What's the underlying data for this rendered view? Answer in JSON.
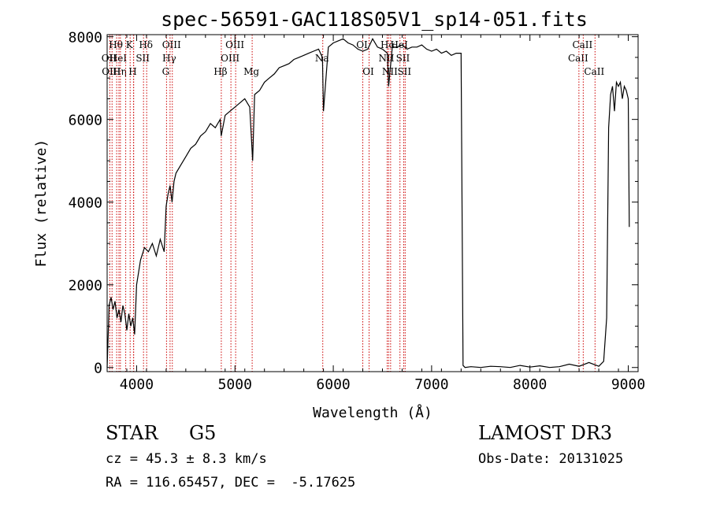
{
  "chart_data": {
    "type": "line",
    "title": "spec-56591-GAC118S05V1_sp14-051.fits",
    "xlabel": "Wavelength (Å)",
    "ylabel": "Flux (relative)",
    "xlim": [
      3700,
      9100
    ],
    "ylim": [
      -100,
      8050
    ],
    "xticks": [
      4000,
      5000,
      6000,
      7000,
      8000,
      9000
    ],
    "yticks": [
      0,
      2000,
      4000,
      6000,
      8000
    ],
    "grid": false,
    "series": [
      {
        "x": [
          3700,
          3720,
          3740,
          3760,
          3780,
          3800,
          3820,
          3840,
          3860,
          3880,
          3900,
          3920,
          3940,
          3960,
          3980,
          4000,
          4040,
          4080,
          4120,
          4160,
          4200,
          4240,
          4280,
          4300,
          4320,
          4340,
          4360,
          4380,
          4400,
          4450,
          4500,
          4550,
          4600,
          4650,
          4700,
          4750,
          4800,
          4850,
          4860,
          4900,
          4950,
          5000,
          5050,
          5100,
          5150,
          5180,
          5200,
          5250,
          5300,
          5350,
          5400,
          5450,
          5500,
          5550,
          5600,
          5650,
          5700,
          5750,
          5800,
          5850,
          5890,
          5900,
          5950,
          6000,
          6050,
          6100,
          6150,
          6200,
          6250,
          6300,
          6350,
          6400,
          6450,
          6500,
          6550,
          6563,
          6600,
          6650,
          6700,
          6750,
          6800,
          6850,
          6900,
          6950,
          7000,
          7050,
          7100,
          7150,
          7200,
          7250,
          7300,
          7320,
          7340,
          7400,
          7500,
          7600,
          7700,
          7800,
          7900,
          8000,
          8100,
          8200,
          8300,
          8400,
          8500,
          8600,
          8700,
          8750,
          8780,
          8800,
          8820,
          8840,
          8860,
          8880,
          8900,
          8920,
          8940,
          8960,
          8980,
          9000,
          9010
        ],
        "y": [
          0,
          1500,
          1700,
          1400,
          1600,
          1200,
          1400,
          1100,
          1500,
          1300,
          900,
          1300,
          1000,
          1200,
          800,
          2000,
          2600,
          2900,
          2800,
          3000,
          2700,
          3100,
          2800,
          3900,
          4200,
          4400,
          4000,
          4500,
          4700,
          4900,
          5100,
          5300,
          5400,
          5600,
          5700,
          5900,
          5800,
          6000,
          5600,
          6100,
          6200,
          6300,
          6400,
          6500,
          6300,
          5000,
          6600,
          6700,
          6900,
          7000,
          7100,
          7250,
          7300,
          7350,
          7450,
          7500,
          7550,
          7600,
          7650,
          7700,
          7500,
          6200,
          7750,
          7850,
          7900,
          7950,
          7850,
          7800,
          7700,
          7650,
          7700,
          7950,
          7750,
          7700,
          7600,
          6800,
          7750,
          7750,
          7800,
          7700,
          7750,
          7750,
          7800,
          7700,
          7650,
          7700,
          7600,
          7650,
          7550,
          7600,
          7600,
          50,
          0,
          20,
          0,
          30,
          20,
          0,
          50,
          10,
          40,
          0,
          20,
          80,
          30,
          120,
          30,
          150,
          1200,
          5800,
          6600,
          6800,
          6200,
          6900,
          6800,
          6900,
          6500,
          6800,
          6700,
          6500,
          3400
        ]
      }
    ],
    "line_markers": [
      {
        "x": 3727,
        "label": "OII",
        "row": 1
      },
      {
        "x": 3750,
        "label": "OIII",
        "row": 2
      },
      {
        "x": 3797,
        "label": "Hθ",
        "row": 0
      },
      {
        "x": 3820,
        "label": "HeI",
        "row": 1
      },
      {
        "x": 3835,
        "label": "Hη",
        "row": 2
      },
      {
        "x": 3889,
        "label": "",
        "row": 0
      },
      {
        "x": 3934,
        "label": "K",
        "row": 0
      },
      {
        "x": 3968,
        "label": "H",
        "row": 2
      },
      {
        "x": 3970,
        "label": "",
        "row": 0
      },
      {
        "x": 4070,
        "label": "SII",
        "row": 1
      },
      {
        "x": 4102,
        "label": "Hδ",
        "row": 0
      },
      {
        "x": 4304,
        "label": "G",
        "row": 2
      },
      {
        "x": 4340,
        "label": "Hγ",
        "row": 1
      },
      {
        "x": 4363,
        "label": "OIII",
        "row": 0
      },
      {
        "x": 4861,
        "label": "Hβ",
        "row": 2
      },
      {
        "x": 4959,
        "label": "OIII",
        "row": 1
      },
      {
        "x": 5007,
        "label": "OIII",
        "row": 0
      },
      {
        "x": 5175,
        "label": "Mg",
        "row": 2
      },
      {
        "x": 5893,
        "label": "Na",
        "row": 1
      },
      {
        "x": 6300,
        "label": "OI",
        "row": 0
      },
      {
        "x": 6364,
        "label": "OI",
        "row": 2
      },
      {
        "x": 6548,
        "label": "NII",
        "row": 1
      },
      {
        "x": 6563,
        "label": "Hα",
        "row": 0
      },
      {
        "x": 6583,
        "label": "NII",
        "row": 2
      },
      {
        "x": 6678,
        "label": "HeI",
        "row": 0
      },
      {
        "x": 6716,
        "label": "SII",
        "row": 1
      },
      {
        "x": 6731,
        "label": "SII",
        "row": 2
      },
      {
        "x": 8498,
        "label": "CaII",
        "row": 1
      },
      {
        "x": 8542,
        "label": "CaII",
        "row": 0
      },
      {
        "x": 8662,
        "label": "CaII",
        "row": 2
      }
    ]
  },
  "info": {
    "class": "STAR",
    "subclass": "G5",
    "survey": "LAMOST DR3",
    "cz": "cz = 45.3 ± 8.3 km/s",
    "obs_date": "Obs-Date: 20131025",
    "radec": "RA = 116.65457, DEC =  -5.17625"
  }
}
